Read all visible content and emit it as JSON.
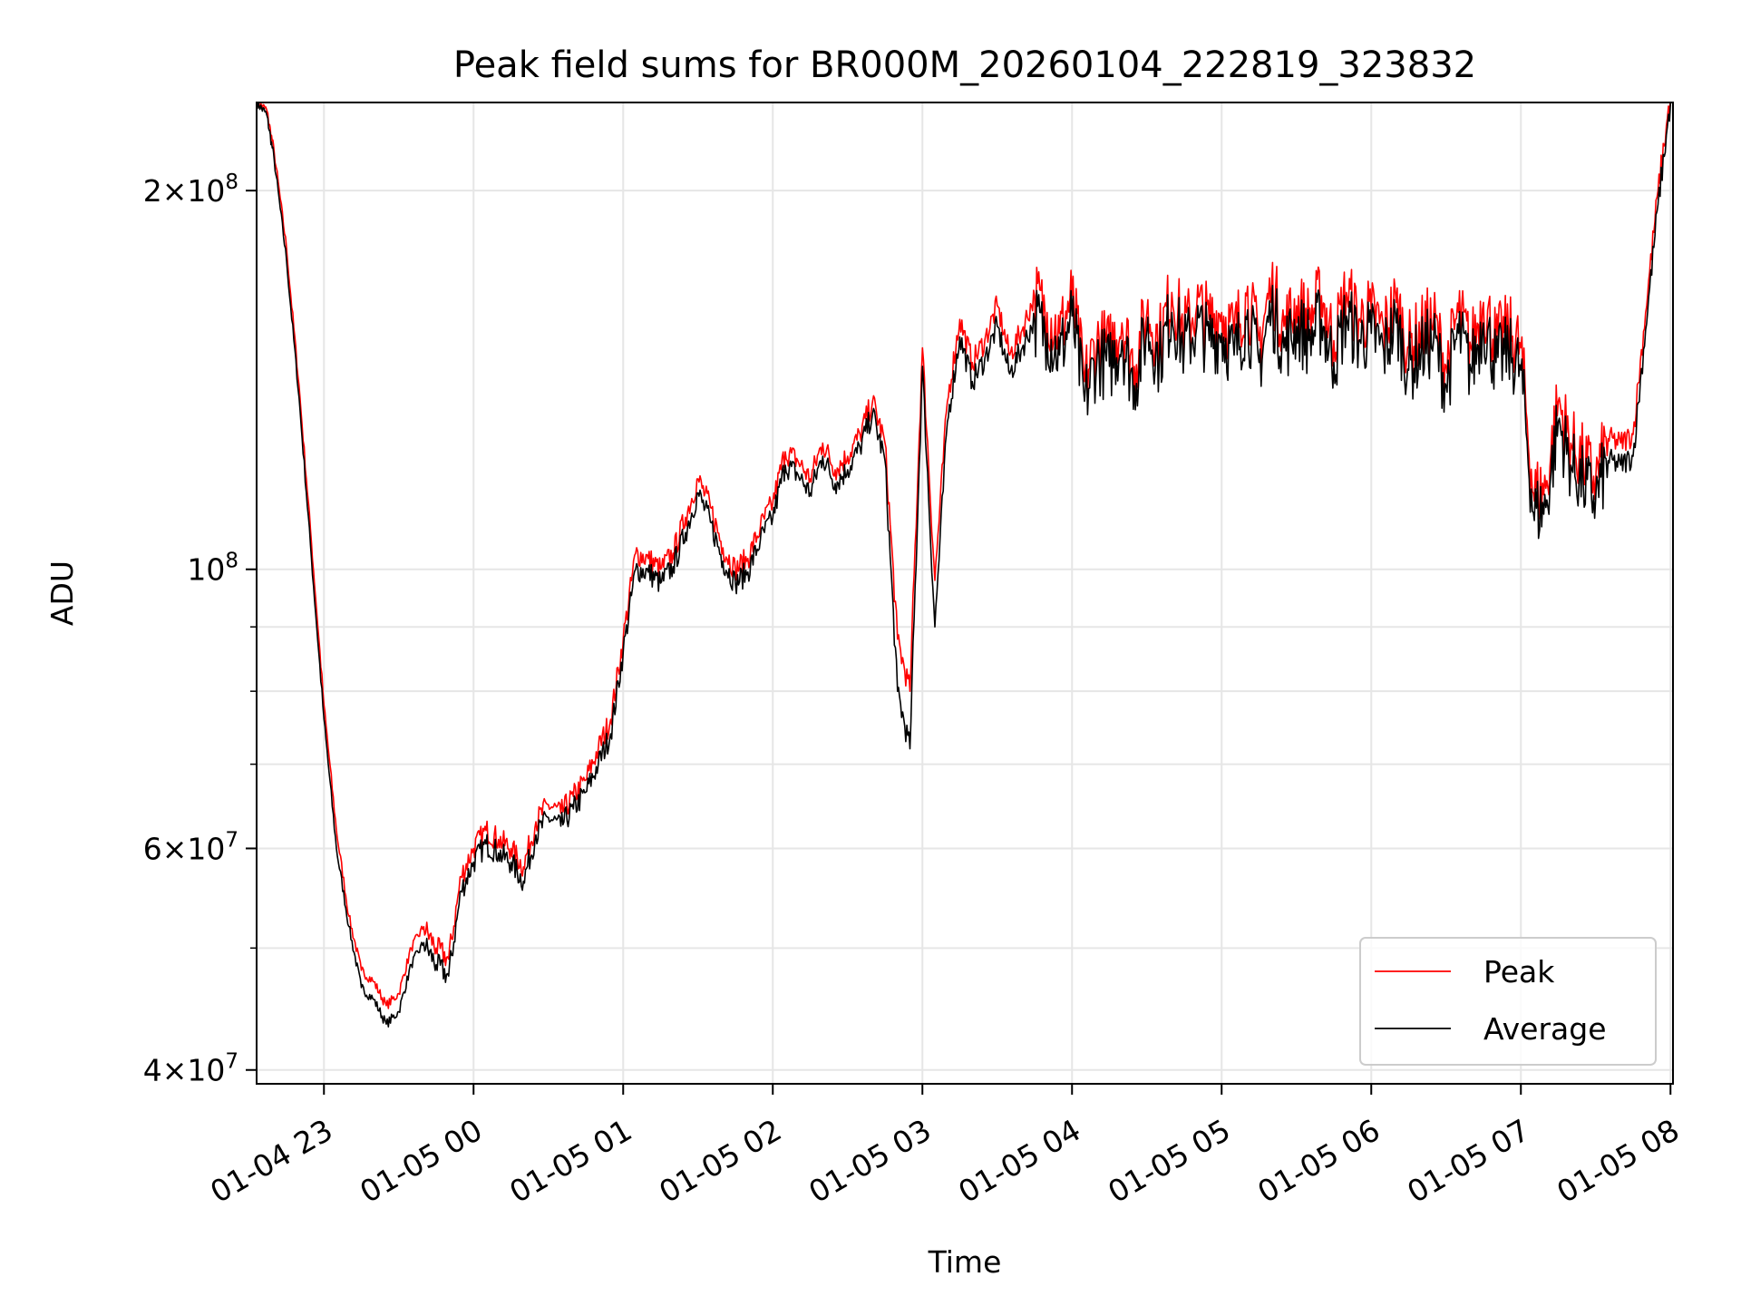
{
  "chart_data": {
    "type": "line",
    "title": "Peak field sums for BR000M_20260104_222819_323832",
    "xlabel": "Time",
    "ylabel": "ADU",
    "yscale": "log",
    "ylim": [
      39000000,
      235000000
    ],
    "xlim": [
      "2026-01-04 22:33",
      "2026-01-05 08:01"
    ],
    "x_ticks": [
      {
        "t": "2026-01-04 23:00",
        "label": "01-04 23"
      },
      {
        "t": "2026-01-05 00:00",
        "label": "01-05 00"
      },
      {
        "t": "2026-01-05 01:00",
        "label": "01-05 01"
      },
      {
        "t": "2026-01-05 02:00",
        "label": "01-05 02"
      },
      {
        "t": "2026-01-05 03:00",
        "label": "01-05 03"
      },
      {
        "t": "2026-01-05 04:00",
        "label": "01-05 04"
      },
      {
        "t": "2026-01-05 05:00",
        "label": "01-05 05"
      },
      {
        "t": "2026-01-05 06:00",
        "label": "01-05 06"
      },
      {
        "t": "2026-01-05 07:00",
        "label": "01-05 07"
      },
      {
        "t": "2026-01-05 08:00",
        "label": "01-05 08"
      }
    ],
    "y_ticks": [
      {
        "value": 40000000,
        "mantissa": "4",
        "exp": "7"
      },
      {
        "value": 60000000,
        "mantissa": "6",
        "exp": "7"
      },
      {
        "value": 100000000,
        "mantissa": "",
        "exp": "8"
      },
      {
        "value": 200000000,
        "mantissa": "2",
        "exp": "8"
      }
    ],
    "y_minor_ticks": [
      50000000,
      70000000,
      80000000,
      90000000
    ],
    "grid": true,
    "legend": {
      "placement": "lower right",
      "entries": [
        "Peak",
        "Average"
      ]
    },
    "series": [
      {
        "name": "Peak",
        "color": "#ff0000",
        "x": [
          "2026-01-04 22:33",
          "2026-01-04 22:37",
          "2026-01-04 22:40",
          "2026-01-04 22:45",
          "2026-01-04 22:50",
          "2026-01-04 22:55",
          "2026-01-04 23:00",
          "2026-01-04 23:05",
          "2026-01-04 23:10",
          "2026-01-04 23:15",
          "2026-01-04 23:20",
          "2026-01-04 23:25",
          "2026-01-04 23:30",
          "2026-01-04 23:35",
          "2026-01-04 23:40",
          "2026-01-04 23:45",
          "2026-01-04 23:50",
          "2026-01-04 23:55",
          "2026-01-05 00:00",
          "2026-01-05 00:05",
          "2026-01-05 00:10",
          "2026-01-05 00:15",
          "2026-01-05 00:20",
          "2026-01-05 00:25",
          "2026-01-05 00:30",
          "2026-01-05 00:35",
          "2026-01-05 00:40",
          "2026-01-05 00:45",
          "2026-01-05 00:50",
          "2026-01-05 00:55",
          "2026-01-05 01:00",
          "2026-01-05 01:05",
          "2026-01-05 01:10",
          "2026-01-05 01:15",
          "2026-01-05 01:20",
          "2026-01-05 01:25",
          "2026-01-05 01:30",
          "2026-01-05 01:35",
          "2026-01-05 01:40",
          "2026-01-05 01:45",
          "2026-01-05 01:50",
          "2026-01-05 01:55",
          "2026-01-05 02:00",
          "2026-01-05 02:05",
          "2026-01-05 02:10",
          "2026-01-05 02:15",
          "2026-01-05 02:20",
          "2026-01-05 02:25",
          "2026-01-05 02:30",
          "2026-01-05 02:35",
          "2026-01-05 02:40",
          "2026-01-05 02:45",
          "2026-01-05 02:50",
          "2026-01-05 02:55",
          "2026-01-05 03:00",
          "2026-01-05 03:05",
          "2026-01-05 03:10",
          "2026-01-05 03:15",
          "2026-01-05 03:20",
          "2026-01-05 03:25",
          "2026-01-05 03:30",
          "2026-01-05 03:35",
          "2026-01-05 03:40",
          "2026-01-05 03:45",
          "2026-01-05 03:50",
          "2026-01-05 03:55",
          "2026-01-05 04:00",
          "2026-01-05 04:05",
          "2026-01-05 04:10",
          "2026-01-05 04:15",
          "2026-01-05 04:20",
          "2026-01-05 04:25",
          "2026-01-05 04:30",
          "2026-01-05 04:35",
          "2026-01-05 04:40",
          "2026-01-05 04:45",
          "2026-01-05 04:50",
          "2026-01-05 04:55",
          "2026-01-05 05:00",
          "2026-01-05 05:05",
          "2026-01-05 05:10",
          "2026-01-05 05:15",
          "2026-01-05 05:20",
          "2026-01-05 05:25",
          "2026-01-05 05:30",
          "2026-01-05 05:35",
          "2026-01-05 05:40",
          "2026-01-05 05:45",
          "2026-01-05 05:50",
          "2026-01-05 05:55",
          "2026-01-05 06:00",
          "2026-01-05 06:05",
          "2026-01-05 06:10",
          "2026-01-05 06:15",
          "2026-01-05 06:20",
          "2026-01-05 06:25",
          "2026-01-05 06:30",
          "2026-01-05 06:35",
          "2026-01-05 06:40",
          "2026-01-05 06:45",
          "2026-01-05 06:50",
          "2026-01-05 06:55",
          "2026-01-05 07:00",
          "2026-01-05 07:05",
          "2026-01-05 07:10",
          "2026-01-05 07:15",
          "2026-01-05 07:20",
          "2026-01-05 07:25",
          "2026-01-05 07:30",
          "2026-01-05 07:35",
          "2026-01-05 07:40",
          "2026-01-05 07:45",
          "2026-01-05 07:50",
          "2026-01-05 07:55",
          "2026-01-05 08:00"
        ],
        "values": [
          235000000,
          232000000,
          215000000,
          180000000,
          140000000,
          105000000,
          78000000,
          62000000,
          53000000,
          48000000,
          47000000,
          45000000,
          46000000,
          50000000,
          52000000,
          50000000,
          49000000,
          57000000,
          60000000,
          62000000,
          61000000,
          60000000,
          58000000,
          63000000,
          65000000,
          64000000,
          66000000,
          68000000,
          72000000,
          76000000,
          88000000,
          103000000,
          102000000,
          100000000,
          103000000,
          110000000,
          118000000,
          112000000,
          104000000,
          100000000,
          102000000,
          108000000,
          113000000,
          124000000,
          122000000,
          118000000,
          126000000,
          120000000,
          123000000,
          128000000,
          136000000,
          126000000,
          88000000,
          80000000,
          150000000,
          98000000,
          136000000,
          158000000,
          146000000,
          152000000,
          162000000,
          148000000,
          155000000,
          165000000,
          160000000,
          154000000,
          165000000,
          141000000,
          152000000,
          150000000,
          157000000,
          145000000,
          160000000,
          152000000,
          166000000,
          155000000,
          162000000,
          158000000,
          160000000,
          154000000,
          165000000,
          152000000,
          168000000,
          156000000,
          162000000,
          158000000,
          165000000,
          152000000,
          166000000,
          158000000,
          160000000,
          155000000,
          163000000,
          150000000,
          155000000,
          158000000,
          145000000,
          160000000,
          150000000,
          163000000,
          152000000,
          155000000,
          150000000,
          115000000,
          116000000,
          136000000,
          126000000,
          122000000,
          118000000,
          127000000,
          126000000,
          128000000,
          160000000,
          200000000,
          238000000
        ]
      },
      {
        "name": "Average",
        "color": "#000000",
        "x": [
          "2026-01-04 22:33",
          "2026-01-04 22:37",
          "2026-01-04 22:40",
          "2026-01-04 22:45",
          "2026-01-04 22:50",
          "2026-01-04 22:55",
          "2026-01-04 23:00",
          "2026-01-04 23:05",
          "2026-01-04 23:10",
          "2026-01-04 23:15",
          "2026-01-04 23:20",
          "2026-01-04 23:25",
          "2026-01-04 23:30",
          "2026-01-04 23:35",
          "2026-01-04 23:40",
          "2026-01-04 23:45",
          "2026-01-04 23:50",
          "2026-01-04 23:55",
          "2026-01-05 00:00",
          "2026-01-05 00:05",
          "2026-01-05 00:10",
          "2026-01-05 00:15",
          "2026-01-05 00:20",
          "2026-01-05 00:25",
          "2026-01-05 00:30",
          "2026-01-05 00:35",
          "2026-01-05 00:40",
          "2026-01-05 00:45",
          "2026-01-05 00:50",
          "2026-01-05 00:55",
          "2026-01-05 01:00",
          "2026-01-05 01:05",
          "2026-01-05 01:10",
          "2026-01-05 01:15",
          "2026-01-05 01:20",
          "2026-01-05 01:25",
          "2026-01-05 01:30",
          "2026-01-05 01:35",
          "2026-01-05 01:40",
          "2026-01-05 01:45",
          "2026-01-05 01:50",
          "2026-01-05 01:55",
          "2026-01-05 02:00",
          "2026-01-05 02:05",
          "2026-01-05 02:10",
          "2026-01-05 02:15",
          "2026-01-05 02:20",
          "2026-01-05 02:25",
          "2026-01-05 02:30",
          "2026-01-05 02:35",
          "2026-01-05 02:40",
          "2026-01-05 02:45",
          "2026-01-05 02:50",
          "2026-01-05 02:55",
          "2026-01-05 03:00",
          "2026-01-05 03:05",
          "2026-01-05 03:10",
          "2026-01-05 03:15",
          "2026-01-05 03:20",
          "2026-01-05 03:25",
          "2026-01-05 03:30",
          "2026-01-05 03:35",
          "2026-01-05 03:40",
          "2026-01-05 03:45",
          "2026-01-05 03:50",
          "2026-01-05 03:55",
          "2026-01-05 04:00",
          "2026-01-05 04:05",
          "2026-01-05 04:10",
          "2026-01-05 04:15",
          "2026-01-05 04:20",
          "2026-01-05 04:25",
          "2026-01-05 04:30",
          "2026-01-05 04:35",
          "2026-01-05 04:40",
          "2026-01-05 04:45",
          "2026-01-05 04:50",
          "2026-01-05 04:55",
          "2026-01-05 05:00",
          "2026-01-05 05:05",
          "2026-01-05 05:10",
          "2026-01-05 05:15",
          "2026-01-05 05:20",
          "2026-01-05 05:25",
          "2026-01-05 05:30",
          "2026-01-05 05:35",
          "2026-01-05 05:40",
          "2026-01-05 05:45",
          "2026-01-05 05:50",
          "2026-01-05 05:55",
          "2026-01-05 06:00",
          "2026-01-05 06:05",
          "2026-01-05 06:10",
          "2026-01-05 06:15",
          "2026-01-05 06:20",
          "2026-01-05 06:25",
          "2026-01-05 06:30",
          "2026-01-05 06:35",
          "2026-01-05 06:40",
          "2026-01-05 06:45",
          "2026-01-05 06:50",
          "2026-01-05 06:55",
          "2026-01-05 07:00",
          "2026-01-05 07:05",
          "2026-01-05 07:10",
          "2026-01-05 07:15",
          "2026-01-05 07:20",
          "2026-01-05 07:25",
          "2026-01-05 07:30",
          "2026-01-05 07:35",
          "2026-01-05 07:40",
          "2026-01-05 07:45",
          "2026-01-05 07:50",
          "2026-01-05 07:55",
          "2026-01-05 08:00"
        ],
        "values": [
          235000000,
          230000000,
          212000000,
          176000000,
          137000000,
          102000000,
          76000000,
          60000000,
          52000000,
          46500000,
          45500000,
          43500000,
          44500000,
          48500000,
          50500000,
          48500000,
          47500000,
          55500000,
          58500000,
          60500000,
          59500000,
          58500000,
          56500000,
          61500000,
          63500000,
          62500000,
          64500000,
          66500000,
          70000000,
          74000000,
          86000000,
          100000000,
          99500000,
          97500000,
          100500000,
          107000000,
          115000000,
          109000000,
          101500000,
          97500000,
          99500000,
          105500000,
          110000000,
          121000000,
          119000000,
          115000000,
          123000000,
          117000000,
          120000000,
          125000000,
          133000000,
          122000000,
          80000000,
          72000000,
          145000000,
          90000000,
          131000000,
          153000000,
          141000000,
          147000000,
          156000000,
          143000000,
          150000000,
          158000000,
          154000000,
          148000000,
          159000000,
          136000000,
          147000000,
          145000000,
          152000000,
          140000000,
          155000000,
          147000000,
          160000000,
          150000000,
          156000000,
          152000000,
          154000000,
          148000000,
          158000000,
          146000000,
          161000000,
          150000000,
          156000000,
          152000000,
          158000000,
          146000000,
          159000000,
          152000000,
          154000000,
          149000000,
          157000000,
          144000000,
          149000000,
          152000000,
          140000000,
          154000000,
          144000000,
          157000000,
          146000000,
          149000000,
          144000000,
          111000000,
          112000000,
          131000000,
          121000000,
          117000000,
          114000000,
          122000000,
          121000000,
          123000000,
          155000000,
          195000000,
          235000000
        ]
      }
    ]
  }
}
